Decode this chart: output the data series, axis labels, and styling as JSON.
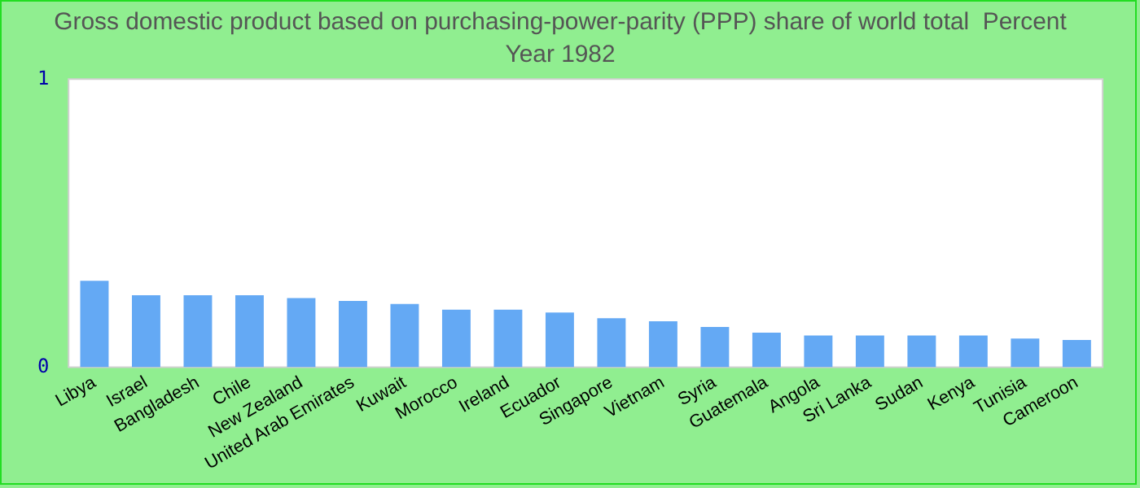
{
  "chart_data": {
    "type": "bar",
    "title": "Gross domestic product based on purchasing-power-parity (PPP) share of world total  Percent",
    "subtitle": "Year 1982",
    "categories": [
      "Libya",
      "Israel",
      "Bangladesh",
      "Chile",
      "New Zealand",
      "United Arab Emirates",
      "Kuwait",
      "Morocco",
      "Ireland",
      "Ecuador",
      "Singapore",
      "Vietnam",
      "Syria",
      "Guatemala",
      "Angola",
      "Sri Lanka",
      "Sudan",
      "Kenya",
      "Tunisia",
      "Cameroon"
    ],
    "values": [
      0.3,
      0.25,
      0.25,
      0.25,
      0.24,
      0.23,
      0.22,
      0.2,
      0.2,
      0.19,
      0.17,
      0.16,
      0.14,
      0.12,
      0.11,
      0.11,
      0.11,
      0.11,
      0.1,
      0.095
    ],
    "color": "#64a9f4",
    "ylim": [
      0,
      1
    ],
    "yticks": [
      0,
      1
    ],
    "grid": false,
    "legend": false
  }
}
